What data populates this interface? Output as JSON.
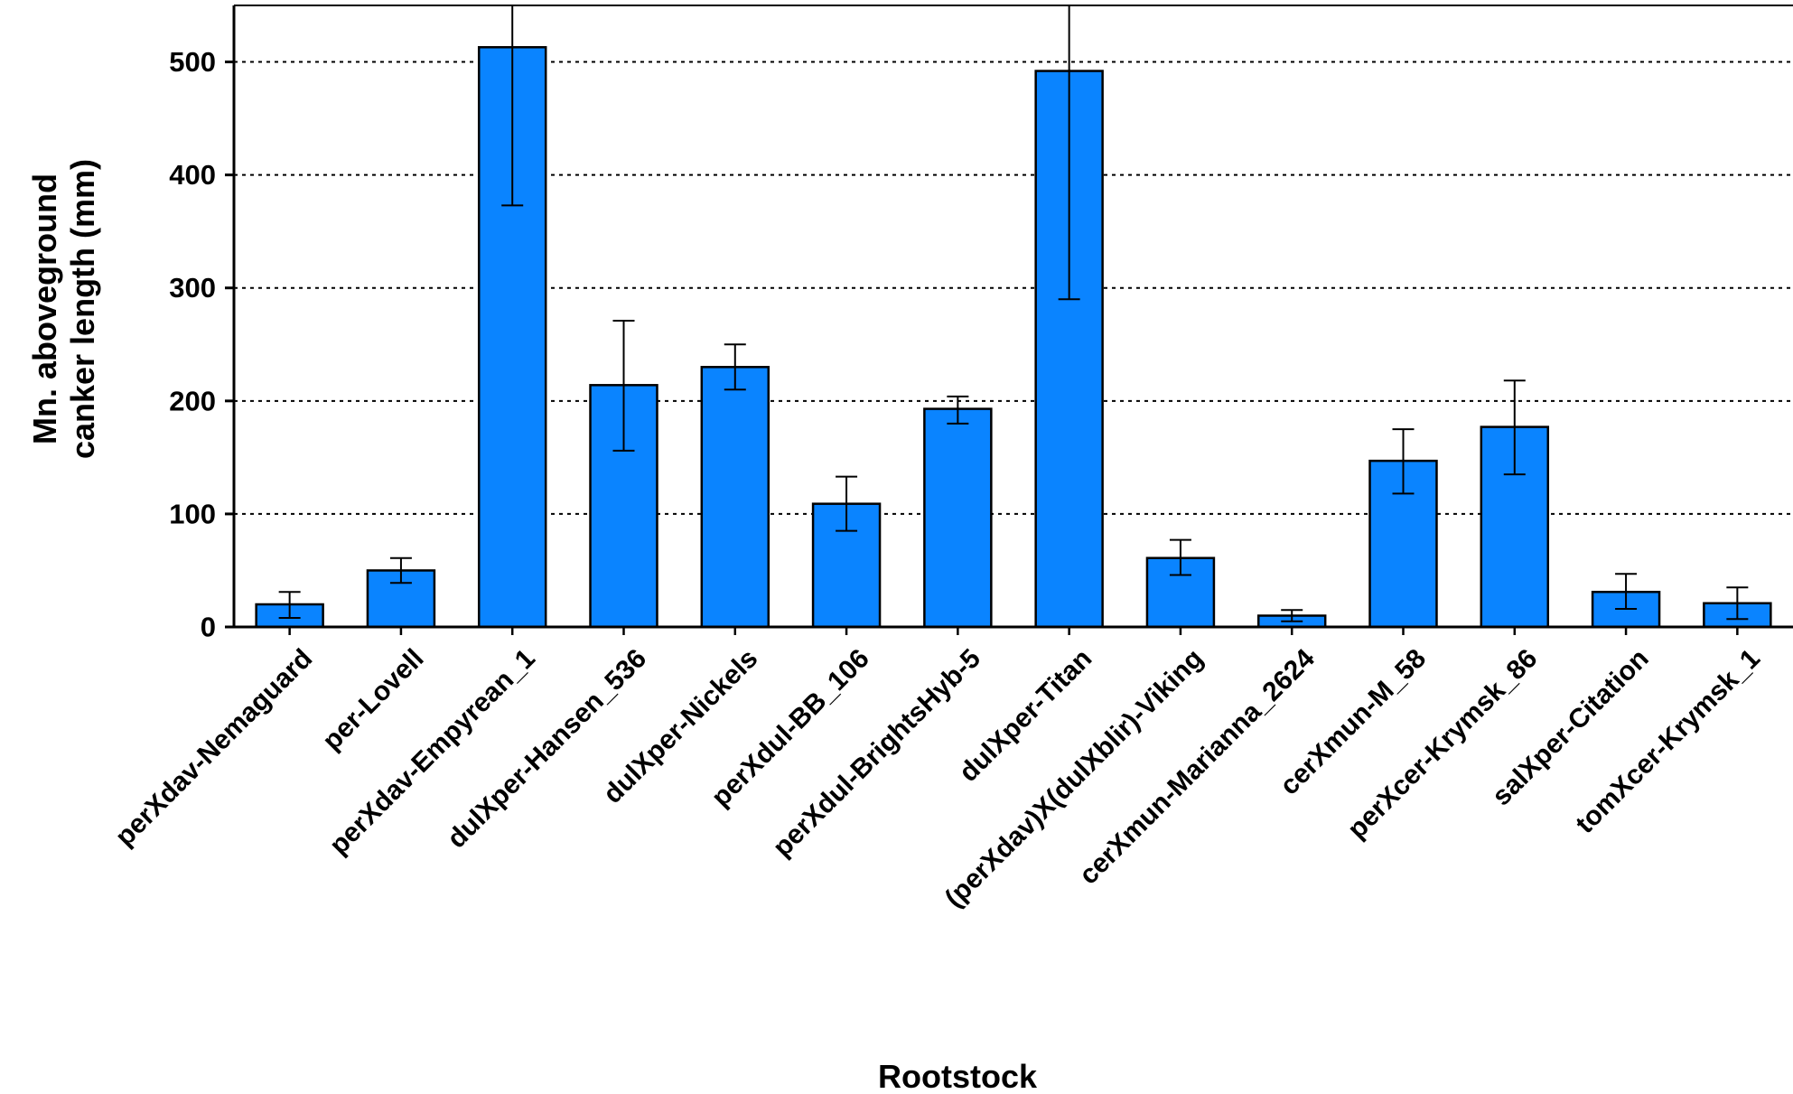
{
  "chart_data": {
    "type": "bar",
    "xlabel": "Rootstock",
    "ylabel_lines": [
      "Mn. aboveground",
      "canker length (mm)"
    ],
    "ylim": [
      0,
      550
    ],
    "yticks": [
      0,
      100,
      200,
      300,
      400,
      500
    ],
    "grid": "horizontal dotted",
    "bar_color": "#0a84ff",
    "categories": [
      "perXdav-Nemaguard",
      "per-Lovell",
      "perXdav-Empyrean_1",
      "dulXper-Hansen_536",
      "dulXper-Nickels",
      "perXdul-BB_106",
      "perXdul-BrightsHyb-5",
      "dulXper-Titan",
      "(perXdav)X(dulXblir)-Viking",
      "cerXmun-Marianna_2624",
      "cerXmun-M_58",
      "perXcer-Krymsk_86",
      "salXper-Citation",
      "tomXcer-Krymsk_1"
    ],
    "values": [
      20,
      50,
      513,
      214,
      230,
      109,
      193,
      492,
      61,
      10,
      147,
      177,
      31,
      21
    ],
    "error_low": [
      8,
      39,
      373,
      156,
      210,
      85,
      180,
      290,
      46,
      5,
      118,
      135,
      16,
      7
    ],
    "error_high": [
      31,
      61,
      550,
      271,
      250,
      133,
      204,
      550,
      77,
      15,
      175,
      218,
      47,
      35
    ]
  }
}
